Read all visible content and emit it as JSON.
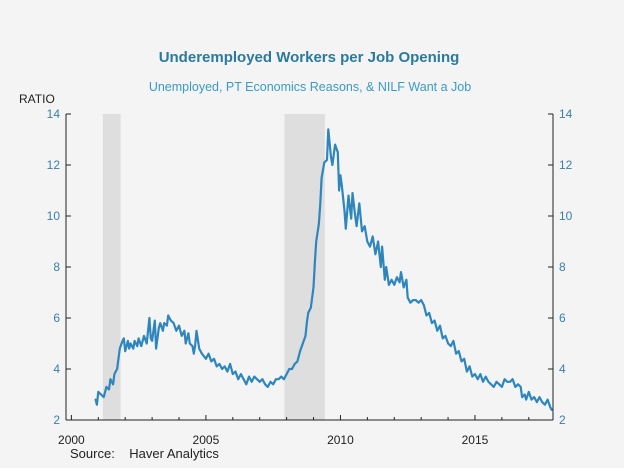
{
  "chart_data": {
    "type": "line",
    "title": "Underemployed Workers per Job Opening",
    "subtitle": "Unemployed, PT Economics Reasons, & NILF Want a Job",
    "ylabel": "RATIO",
    "source": "Source:    Haver Analytics",
    "xlim": [
      1999.8,
      2017.9
    ],
    "ylim": [
      2,
      14
    ],
    "x_ticks": [
      2000,
      2005,
      2010,
      2015
    ],
    "x_tick_labels": [
      "2000",
      "2005",
      "2010",
      "2015"
    ],
    "y_ticks": [
      2,
      4,
      6,
      8,
      10,
      12,
      14
    ],
    "y_tick_labels": [
      "2",
      "4",
      "6",
      "8",
      "10",
      "12",
      "14"
    ],
    "recessions": [
      {
        "start": 2001.17,
        "end": 2001.83
      },
      {
        "start": 2007.92,
        "end": 2009.42
      }
    ],
    "series": [
      {
        "name": "Underemployed Workers per Job Opening",
        "color": "#2e86bd",
        "points": [
          [
            2000.9,
            2.8
          ],
          [
            2000.95,
            2.6
          ],
          [
            2001.0,
            3.1
          ],
          [
            2001.1,
            3.0
          ],
          [
            2001.2,
            2.9
          ],
          [
            2001.3,
            3.3
          ],
          [
            2001.4,
            3.2
          ],
          [
            2001.45,
            3.6
          ],
          [
            2001.55,
            3.4
          ],
          [
            2001.6,
            3.8
          ],
          [
            2001.7,
            4.0
          ],
          [
            2001.8,
            4.8
          ],
          [
            2001.9,
            5.1
          ],
          [
            2001.95,
            5.2
          ],
          [
            2002.0,
            4.7
          ],
          [
            2002.1,
            5.1
          ],
          [
            2002.15,
            4.8
          ],
          [
            2002.2,
            5.0
          ],
          [
            2002.3,
            4.8
          ],
          [
            2002.35,
            5.1
          ],
          [
            2002.45,
            4.9
          ],
          [
            2002.5,
            5.2
          ],
          [
            2002.6,
            4.9
          ],
          [
            2002.7,
            5.3
          ],
          [
            2002.8,
            5.0
          ],
          [
            2002.9,
            6.0
          ],
          [
            2002.95,
            5.2
          ],
          [
            2003.0,
            5.1
          ],
          [
            2003.1,
            5.9
          ],
          [
            2003.15,
            4.8
          ],
          [
            2003.25,
            5.6
          ],
          [
            2003.3,
            5.8
          ],
          [
            2003.4,
            5.5
          ],
          [
            2003.45,
            5.8
          ],
          [
            2003.55,
            5.7
          ],
          [
            2003.6,
            6.1
          ],
          [
            2003.7,
            5.9
          ],
          [
            2003.8,
            5.8
          ],
          [
            2003.9,
            5.5
          ],
          [
            2004.0,
            5.7
          ],
          [
            2004.1,
            5.3
          ],
          [
            2004.2,
            5.5
          ],
          [
            2004.25,
            5.0
          ],
          [
            2004.35,
            5.4
          ],
          [
            2004.4,
            5.0
          ],
          [
            2004.5,
            4.9
          ],
          [
            2004.55,
            4.6
          ],
          [
            2004.6,
            4.9
          ],
          [
            2004.65,
            5.5
          ],
          [
            2004.75,
            4.8
          ],
          [
            2004.85,
            4.6
          ],
          [
            2005.0,
            4.4
          ],
          [
            2005.1,
            4.6
          ],
          [
            2005.2,
            4.3
          ],
          [
            2005.3,
            4.4
          ],
          [
            2005.4,
            4.1
          ],
          [
            2005.5,
            4.2
          ],
          [
            2005.6,
            4.0
          ],
          [
            2005.7,
            4.1
          ],
          [
            2005.8,
            3.9
          ],
          [
            2005.9,
            4.2
          ],
          [
            2006.0,
            3.8
          ],
          [
            2006.1,
            3.9
          ],
          [
            2006.2,
            3.6
          ],
          [
            2006.3,
            3.8
          ],
          [
            2006.4,
            3.6
          ],
          [
            2006.5,
            3.4
          ],
          [
            2006.6,
            3.7
          ],
          [
            2006.7,
            3.5
          ],
          [
            2006.8,
            3.7
          ],
          [
            2006.9,
            3.6
          ],
          [
            2007.0,
            3.5
          ],
          [
            2007.1,
            3.6
          ],
          [
            2007.2,
            3.4
          ],
          [
            2007.3,
            3.3
          ],
          [
            2007.4,
            3.5
          ],
          [
            2007.5,
            3.4
          ],
          [
            2007.6,
            3.6
          ],
          [
            2007.7,
            3.6
          ],
          [
            2007.8,
            3.7
          ],
          [
            2007.9,
            3.6
          ],
          [
            2008.0,
            3.8
          ],
          [
            2008.1,
            4.0
          ],
          [
            2008.2,
            4.0
          ],
          [
            2008.3,
            4.2
          ],
          [
            2008.4,
            4.3
          ],
          [
            2008.5,
            4.7
          ],
          [
            2008.6,
            5.0
          ],
          [
            2008.7,
            5.3
          ],
          [
            2008.75,
            5.8
          ],
          [
            2008.8,
            6.2
          ],
          [
            2008.9,
            6.4
          ],
          [
            2009.0,
            7.2
          ],
          [
            2009.05,
            8.2
          ],
          [
            2009.1,
            9.0
          ],
          [
            2009.2,
            9.7
          ],
          [
            2009.25,
            10.5
          ],
          [
            2009.3,
            11.5
          ],
          [
            2009.4,
            12.1
          ],
          [
            2009.5,
            12.2
          ],
          [
            2009.55,
            13.4
          ],
          [
            2009.65,
            12.3
          ],
          [
            2009.7,
            12.0
          ],
          [
            2009.8,
            12.8
          ],
          [
            2009.9,
            12.5
          ],
          [
            2009.95,
            11.0
          ],
          [
            2010.0,
            11.6
          ],
          [
            2010.05,
            11.2
          ],
          [
            2010.15,
            10.2
          ],
          [
            2010.2,
            9.5
          ],
          [
            2010.3,
            10.8
          ],
          [
            2010.4,
            9.9
          ],
          [
            2010.45,
            10.9
          ],
          [
            2010.55,
            10.0
          ],
          [
            2010.6,
            9.6
          ],
          [
            2010.7,
            10.5
          ],
          [
            2010.8,
            9.4
          ],
          [
            2010.9,
            9.6
          ],
          [
            2011.0,
            9.0
          ],
          [
            2011.1,
            8.8
          ],
          [
            2011.2,
            9.2
          ],
          [
            2011.3,
            8.5
          ],
          [
            2011.4,
            9.0
          ],
          [
            2011.5,
            8.0
          ],
          [
            2011.55,
            8.8
          ],
          [
            2011.65,
            7.5
          ],
          [
            2011.7,
            8.0
          ],
          [
            2011.8,
            7.3
          ],
          [
            2011.9,
            7.5
          ],
          [
            2012.0,
            7.3
          ],
          [
            2012.1,
            7.6
          ],
          [
            2012.2,
            7.4
          ],
          [
            2012.25,
            7.8
          ],
          [
            2012.35,
            7.2
          ],
          [
            2012.45,
            7.5
          ],
          [
            2012.5,
            6.8
          ],
          [
            2012.6,
            6.6
          ],
          [
            2012.7,
            6.7
          ],
          [
            2012.8,
            6.7
          ],
          [
            2012.9,
            6.6
          ],
          [
            2013.0,
            6.7
          ],
          [
            2013.1,
            6.5
          ],
          [
            2013.2,
            6.1
          ],
          [
            2013.3,
            6.2
          ],
          [
            2013.4,
            5.8
          ],
          [
            2013.5,
            5.9
          ],
          [
            2013.6,
            5.5
          ],
          [
            2013.7,
            5.7
          ],
          [
            2013.8,
            5.2
          ],
          [
            2013.9,
            5.3
          ],
          [
            2014.0,
            5.0
          ],
          [
            2014.1,
            4.9
          ],
          [
            2014.2,
            5.1
          ],
          [
            2014.3,
            4.6
          ],
          [
            2014.4,
            4.7
          ],
          [
            2014.5,
            4.3
          ],
          [
            2014.6,
            4.4
          ],
          [
            2014.7,
            3.9
          ],
          [
            2014.8,
            4.1
          ],
          [
            2014.9,
            3.7
          ],
          [
            2015.0,
            3.8
          ],
          [
            2015.1,
            3.6
          ],
          [
            2015.2,
            3.8
          ],
          [
            2015.3,
            3.5
          ],
          [
            2015.4,
            3.7
          ],
          [
            2015.5,
            3.5
          ],
          [
            2015.6,
            3.4
          ],
          [
            2015.7,
            3.3
          ],
          [
            2015.8,
            3.5
          ],
          [
            2015.9,
            3.4
          ],
          [
            2016.0,
            3.3
          ],
          [
            2016.1,
            3.6
          ],
          [
            2016.2,
            3.5
          ],
          [
            2016.3,
            3.5
          ],
          [
            2016.4,
            3.6
          ],
          [
            2016.5,
            3.3
          ],
          [
            2016.6,
            3.4
          ],
          [
            2016.7,
            3.3
          ],
          [
            2016.75,
            2.9
          ],
          [
            2016.85,
            3.0
          ],
          [
            2016.9,
            2.8
          ],
          [
            2017.0,
            3.1
          ],
          [
            2017.1,
            2.8
          ],
          [
            2017.2,
            2.9
          ],
          [
            2017.3,
            2.7
          ],
          [
            2017.4,
            2.9
          ],
          [
            2017.5,
            2.7
          ],
          [
            2017.6,
            2.6
          ],
          [
            2017.7,
            2.8
          ],
          [
            2017.8,
            2.5
          ],
          [
            2017.85,
            2.4
          ]
        ]
      }
    ]
  },
  "colors": {
    "title": "#2a7a9e",
    "subtitle": "#3a9bc5",
    "ticks": "#3a7fae",
    "axis": "#222222",
    "recession": "#dedede",
    "background": "#f4f4f4"
  }
}
